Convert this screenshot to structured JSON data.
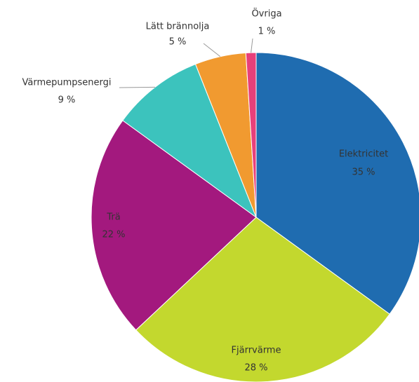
{
  "chart_data": {
    "type": "pie",
    "categories": [
      "Elektricitet",
      "Fjärrvärme",
      "Trä",
      "Värmepumpsenergi",
      "Lätt brännolja",
      "Övriga"
    ],
    "values": [
      35,
      28,
      22,
      9,
      5,
      1
    ],
    "value_labels": [
      "35 %",
      "28 %",
      "22 %",
      "9 %",
      "5 %",
      "1 %"
    ],
    "colors": [
      "#1f6cb0",
      "#c3d82e",
      "#a3197e",
      "#3cc3bd",
      "#f19a30",
      "#e8407a"
    ]
  }
}
